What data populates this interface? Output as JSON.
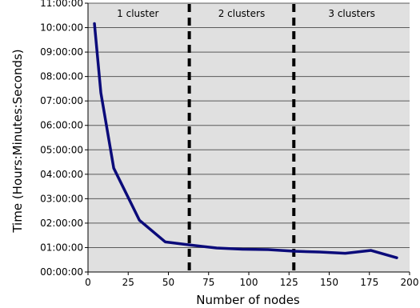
{
  "chart_data": {
    "type": "line",
    "xlabel": "Number of nodes",
    "ylabel": "Time (Hours:Minutes:Seconds)",
    "xlim": [
      0,
      200
    ],
    "ylim_seconds": [
      0,
      39600
    ],
    "grid": true,
    "x_ticks": [
      0,
      25,
      50,
      75,
      100,
      125,
      150,
      175,
      200
    ],
    "y_ticks": [
      "00:00:00",
      "01:00:00",
      "02:00:00",
      "03:00:00",
      "04:00:00",
      "05:00:00",
      "06:00:00",
      "07:00:00",
      "08:00:00",
      "09:00:00",
      "10:00:00",
      "11:00:00"
    ],
    "series": [
      {
        "x": [
          4,
          8,
          16,
          32,
          48,
          64,
          80,
          96,
          112,
          128,
          144,
          160,
          176,
          192
        ],
        "y": [
          "10:10:00",
          "07:20:00",
          "04:15:00",
          "02:07:00",
          "01:14:00",
          "01:06:00",
          "00:59:00",
          "00:56:00",
          "00:55:00",
          "00:51:00",
          "00:49:00",
          "00:46:00",
          "00:53:00",
          "00:35:00"
        ],
        "color": "#0b0b7a"
      }
    ],
    "dividers": [
      63,
      128
    ],
    "regions": [
      {
        "label": "1 cluster",
        "center": 31
      },
      {
        "label": "2 clusters",
        "center": 95.5
      },
      {
        "label": "3 clusters",
        "center": 164
      }
    ],
    "plot_background": "#e0e0e0",
    "grid_color": "#5a5a5a"
  }
}
